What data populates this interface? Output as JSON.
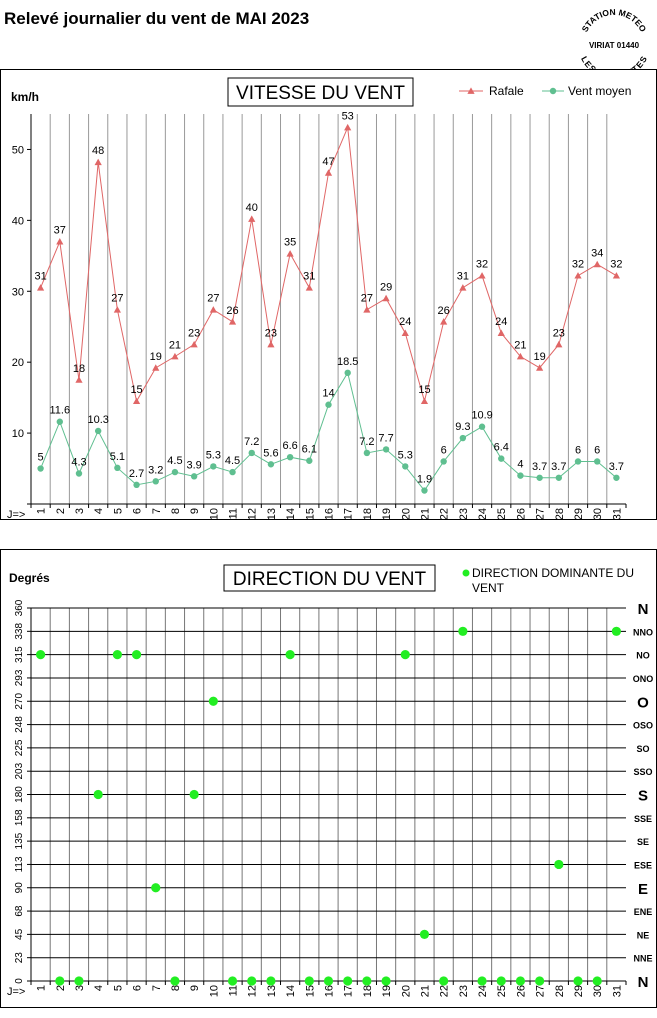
{
  "page": {
    "title": "Relevé journalier du vent de MAI 2023"
  },
  "stamp": {
    "line1": "STATION METEO",
    "line2": "VIRIAT 01440",
    "line3": "LES FAUVETTES"
  },
  "chart_data": [
    {
      "type": "line",
      "title": "VITESSE DU VENT",
      "ylabel": "km/h",
      "x_prefix": "J=>",
      "x": [
        1,
        2,
        3,
        4,
        5,
        6,
        7,
        8,
        9,
        10,
        11,
        12,
        13,
        14,
        15,
        16,
        17,
        18,
        19,
        20,
        21,
        22,
        23,
        24,
        25,
        26,
        27,
        28,
        29,
        30,
        31
      ],
      "ylim": [
        0,
        55
      ],
      "yticks": [
        0,
        10,
        20,
        30,
        40,
        50
      ],
      "grid": "vertical",
      "legend_position": "top-right",
      "series": [
        {
          "name": "Rafale",
          "color": "#e06666",
          "marker": "triangle",
          "values": [
            31,
            37,
            18,
            48,
            27,
            15,
            19,
            21,
            23,
            27,
            26,
            40,
            23,
            35,
            31,
            47,
            53,
            27,
            29,
            24,
            15,
            26,
            31,
            32,
            24,
            21,
            19,
            23,
            32,
            34,
            32
          ],
          "plot_values": [
            30.5,
            37,
            17.5,
            48.2,
            27.4,
            14.5,
            19.2,
            20.8,
            22.5,
            27.4,
            25.7,
            40.2,
            22.5,
            35.3,
            30.5,
            46.7,
            53.1,
            27.4,
            29,
            24.1,
            14.5,
            25.7,
            30.5,
            32.2,
            24.1,
            20.8,
            19.2,
            22.5,
            32.2,
            33.8,
            32.2
          ]
        },
        {
          "name": "Vent moyen",
          "color": "#5fbf90",
          "marker": "circle",
          "values": [
            5,
            11.6,
            4.3,
            10.3,
            5.1,
            2.7,
            3.2,
            4.5,
            3.9,
            5.3,
            4.5,
            7.2,
            5.6,
            6.6,
            6.1,
            14,
            18.5,
            7.2,
            7.7,
            5.3,
            1.9,
            6,
            9.3,
            10.9,
            6.4,
            4,
            3.7,
            3.7,
            6,
            6,
            3.7
          ],
          "labels": [
            "5",
            "11.6",
            "4.3",
            "10.3",
            "5.1",
            "2.7",
            "3.2",
            "4.5",
            "3.9",
            "5.3",
            "4.5",
            "7.2",
            "5.6",
            "6.6",
            "6.1",
            "14",
            "18.5",
            "7.2",
            "7.7",
            "5.3",
            "1.9",
            "6",
            "9.3",
            "10.9",
            "6.4",
            "4",
            "3.7",
            "3.7",
            "6",
            "6",
            "3.7"
          ]
        }
      ]
    },
    {
      "type": "scatter",
      "title": "DIRECTION DU VENT",
      "ylabel": "Degrés",
      "x_prefix": "J=>",
      "x": [
        1,
        2,
        3,
        4,
        5,
        6,
        7,
        8,
        9,
        10,
        11,
        12,
        13,
        14,
        15,
        16,
        17,
        18,
        19,
        20,
        21,
        22,
        23,
        24,
        25,
        26,
        27,
        28,
        29,
        30,
        31
      ],
      "ylim": [
        0,
        360
      ],
      "yticks": [
        0,
        23,
        45,
        68,
        90,
        113,
        135,
        158,
        180,
        203,
        225,
        248,
        270,
        293,
        315,
        338,
        360
      ],
      "ytick_values": [
        0,
        22.5,
        45,
        67.5,
        90,
        112.5,
        135,
        157.5,
        180,
        202.5,
        225,
        247.5,
        270,
        292.5,
        315,
        337.5,
        360
      ],
      "compass": [
        "N",
        "NNE",
        "NE",
        "ENE",
        "E",
        "ESE",
        "SE",
        "SSE",
        "S",
        "SSO",
        "SO",
        "OSO",
        "O",
        "ONO",
        "NO",
        "NNO",
        "N"
      ],
      "compass_major": [
        "N",
        "E",
        "S",
        "O"
      ],
      "grid": "both",
      "legend_position": "top-right",
      "series": [
        {
          "name": "DIRECTION DOMINANTE DU VENT",
          "color": "#22ee22",
          "marker": "circle",
          "values": [
            315,
            0,
            0,
            180,
            315,
            315,
            90,
            0,
            180,
            270,
            0,
            0,
            0,
            315,
            0,
            0,
            0,
            0,
            0,
            315,
            45,
            0,
            337.5,
            0,
            0,
            0,
            0,
            112.5,
            0,
            0,
            337.5
          ]
        }
      ]
    }
  ]
}
